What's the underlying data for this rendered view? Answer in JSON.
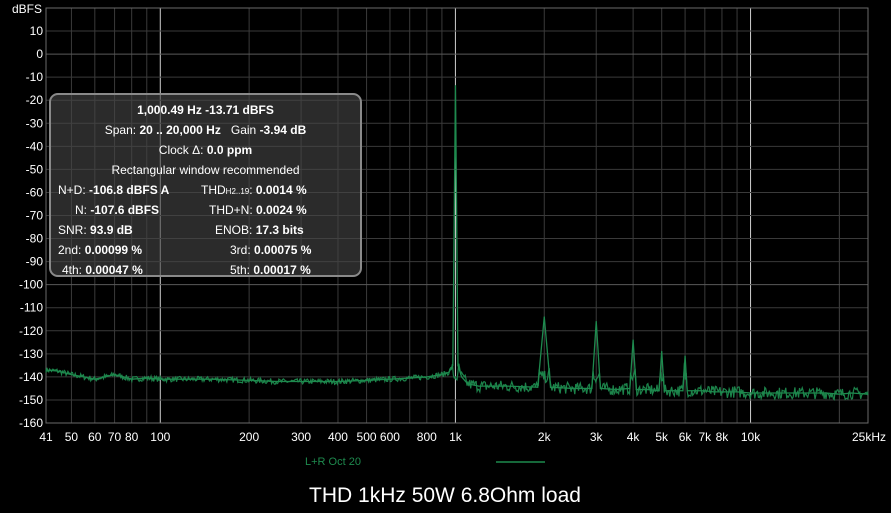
{
  "chart_data": {
    "type": "line",
    "ylabel": "dBFS",
    "xscale": "log",
    "xlim": [
      41,
      25000
    ],
    "ylim": [
      -160,
      20
    ],
    "y_ticks": [
      20,
      10,
      0,
      -10,
      -20,
      -30,
      -40,
      -50,
      -60,
      -70,
      -80,
      -90,
      -100,
      -110,
      -120,
      -130,
      -140,
      -150,
      -160
    ],
    "x_ticks": [
      {
        "value": 41,
        "label": "41"
      },
      {
        "value": 50,
        "label": "50"
      },
      {
        "value": 60,
        "label": "60"
      },
      {
        "value": 70,
        "label": "70"
      },
      {
        "value": 80,
        "label": "80"
      },
      {
        "value": 100,
        "label": "100"
      },
      {
        "value": 200,
        "label": "200"
      },
      {
        "value": 300,
        "label": "300"
      },
      {
        "value": 400,
        "label": "400"
      },
      {
        "value": 500,
        "label": "500"
      },
      {
        "value": 600,
        "label": "600"
      },
      {
        "value": 800,
        "label": "800"
      },
      {
        "value": 1000,
        "label": "1k"
      },
      {
        "value": 2000,
        "label": "2k"
      },
      {
        "value": 3000,
        "label": "3k"
      },
      {
        "value": 4000,
        "label": "4k"
      },
      {
        "value": 5000,
        "label": "5k"
      },
      {
        "value": 6000,
        "label": "6k"
      },
      {
        "value": 7000,
        "label": "7k"
      },
      {
        "value": 8000,
        "label": "8k"
      },
      {
        "value": 10000,
        "label": "10k"
      },
      {
        "value": 25000,
        "label": "25kHz"
      }
    ],
    "grid": true,
    "color": "#1e8a4e",
    "series": [
      {
        "name": "L+R Oct 20",
        "x": [
          41,
          45,
          50,
          55,
          60,
          65,
          70,
          75,
          80,
          90,
          100,
          120,
          150,
          200,
          250,
          300,
          400,
          500,
          600,
          700,
          800,
          900,
          950,
          980,
          1000.49,
          1020,
          1050,
          1100,
          1200,
          1500,
          1900,
          2000,
          2100,
          2500,
          2900,
          3000,
          3100,
          3500,
          3900,
          4000,
          4100,
          4500,
          4900,
          5000,
          5100,
          5500,
          5900,
          6000,
          6100,
          6500,
          7000,
          7500,
          8000,
          9000,
          10000,
          12000,
          15000,
          18000,
          20000,
          22000,
          25000
        ],
        "y": [
          -137,
          -137.5,
          -139,
          -140,
          -141,
          -140,
          -139,
          -140,
          -141,
          -140.5,
          -141,
          -141,
          -141,
          -141.5,
          -142,
          -142,
          -142,
          -141.5,
          -141,
          -140.5,
          -140,
          -139,
          -138,
          -135,
          -13.71,
          -135,
          -140,
          -143,
          -144,
          -144,
          -144.5,
          -114,
          -144.5,
          -145,
          -145,
          -116,
          -145,
          -145.5,
          -145,
          -124,
          -145.5,
          -145.5,
          -146,
          -129,
          -146,
          -146,
          -146,
          -131,
          -146,
          -146,
          -146,
          -146.5,
          -146.5,
          -146.5,
          -147,
          -147,
          -147,
          -147,
          -147.5,
          -147,
          -147.5
        ]
      }
    ],
    "legend": "bottom"
  },
  "readout": {
    "line1": "1,000.49 Hz  -13.71 dBFS",
    "span_label": "Span:",
    "span_value": "20 .. 20,000 Hz",
    "gain_label": "Gain",
    "gain_value": "-3.94 dB",
    "clock_label": "Clock Δ:",
    "clock_value": "0.0 ppm",
    "window_note": "Rectangular window recommended",
    "nd_label": "N+D:",
    "nd_value": "-106.8 dBFS A",
    "thd_label": "THD",
    "thd_sub": "H2..19",
    "thd_value": "0.0014 %",
    "n_label": "N:",
    "n_value": "-107.6 dBFS",
    "thdn_label": "THD+N:",
    "thdn_value": "0.0024 %",
    "snr_label": "SNR:",
    "snr_value": "93.9 dB",
    "enob_label": "ENOB:",
    "enob_value": "17.3 bits",
    "h2_label": "2nd:",
    "h2_value": "0.00099 %",
    "h3_label": "3rd:",
    "h3_value": "0.00075 %",
    "h4_label": "4th:",
    "h4_value": "0.00047 %",
    "h5_label": "5th:",
    "h5_value": "0.00017 %"
  },
  "caption": "THD 1kHz 50W 6.8Ohm load"
}
